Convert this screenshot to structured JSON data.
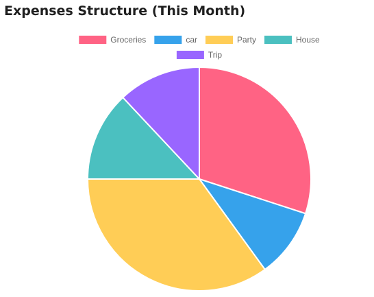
{
  "page": {
    "title": "Expenses Structure (This Month)"
  },
  "chart_data": {
    "type": "pie",
    "title": "Expenses Structure (This Month)",
    "legend_position": "top",
    "start_angle_deg": 0,
    "slices": [
      {
        "label": "Groceries",
        "value": 30,
        "color": "#ff6384"
      },
      {
        "label": "car",
        "value": 10,
        "color": "#36a2eb"
      },
      {
        "label": "Party",
        "value": 35,
        "color": "#ffcd56"
      },
      {
        "label": "House",
        "value": 13,
        "color": "#4bc0c0"
      },
      {
        "label": "Trip",
        "value": 12,
        "color": "#9966ff"
      }
    ]
  }
}
